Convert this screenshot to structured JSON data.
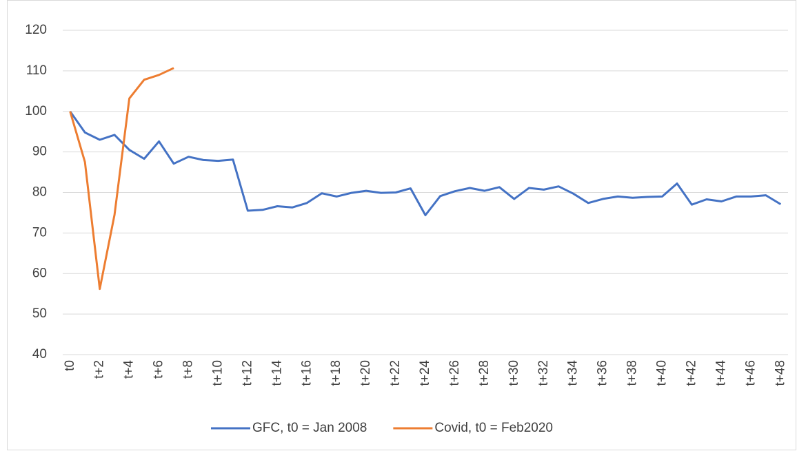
{
  "chart_data": {
    "type": "line",
    "categories": [
      "t0",
      null,
      "t+2",
      null,
      "t+4",
      null,
      "t+6",
      null,
      "t+8",
      null,
      "t+10",
      null,
      "t+12",
      null,
      "t+14",
      null,
      "t+16",
      null,
      "t+18",
      null,
      "t+20",
      null,
      "t+22",
      null,
      "t+24",
      null,
      "t+26",
      null,
      "t+28",
      null,
      "t+30",
      null,
      "t+32",
      null,
      "t+34",
      null,
      "t+36",
      null,
      "t+38",
      null,
      "t+40",
      null,
      "t+42",
      null,
      "t+44",
      null,
      "t+46",
      null,
      "t+48"
    ],
    "series": [
      {
        "name": "GFC, t0 = Jan 2008",
        "color": "#4472c4",
        "values": [
          100,
          94.8,
          93,
          94.2,
          90.5,
          88.3,
          92.6,
          87.1,
          88.8,
          88,
          87.8,
          88.1,
          75.5,
          75.7,
          76.6,
          76.3,
          77.4,
          79.8,
          79,
          79.9,
          80.4,
          79.9,
          80,
          81,
          74.4,
          79.1,
          80.3,
          81.1,
          80.4,
          81.3,
          78.4,
          81.1,
          80.7,
          81.5,
          79.7,
          77.4,
          78.4,
          79,
          78.7,
          78.9,
          79,
          82.2,
          77,
          78.3,
          77.8,
          79,
          79,
          79.3,
          77.1
        ]
      },
      {
        "name": "Covid, t0 = Feb2020",
        "color": "#ed7d31",
        "values": [
          100,
          87.5,
          56.2,
          74.5,
          103.2,
          107.8,
          109,
          110.7,
          null,
          null,
          null,
          null,
          null,
          null,
          null,
          null,
          null,
          null,
          null,
          null,
          null,
          null,
          null,
          null,
          null,
          null,
          null,
          null,
          null,
          null,
          null,
          null,
          null,
          null,
          null,
          null,
          null,
          null,
          null,
          null,
          null,
          null,
          null,
          null,
          null,
          null,
          null,
          null,
          null
        ]
      }
    ],
    "ylim": [
      40,
      120
    ],
    "yticks": [
      40,
      50,
      60,
      70,
      80,
      90,
      100,
      110,
      120
    ],
    "grid": true,
    "legend": "bottom"
  }
}
